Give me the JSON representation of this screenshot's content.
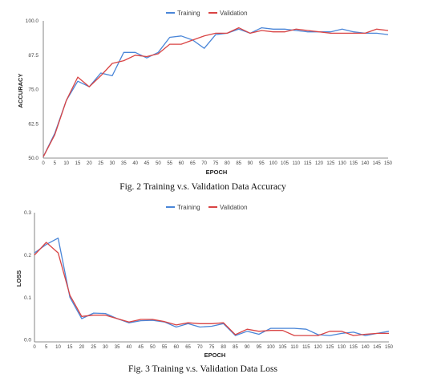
{
  "chart_data": [
    {
      "type": "line",
      "caption": "Fig. 2 Training v.s. Validation Data Accuracy",
      "xlabel": "EPOCH",
      "ylabel": "ACCURACY",
      "xlim": [
        0,
        150
      ],
      "ylim": [
        50,
        100
      ],
      "xticks": [
        "0",
        "5",
        "10",
        "15",
        "20",
        "25",
        "30",
        "35",
        "40",
        "45",
        "50",
        "55",
        "60",
        "65",
        "70",
        "75",
        "80",
        "85",
        "90",
        "95",
        "100",
        "105",
        "110",
        "115",
        "120",
        "125",
        "130",
        "135",
        "140",
        "145",
        "150"
      ],
      "yticks": [
        "50.0",
        "62.5",
        "75.0",
        "87.5",
        "100.0"
      ],
      "ytick_values": [
        50,
        62.5,
        75,
        87.5,
        100
      ],
      "legend": "top",
      "grid": false,
      "x": [
        0,
        5,
        10,
        15,
        20,
        25,
        30,
        35,
        40,
        45,
        50,
        55,
        60,
        65,
        70,
        75,
        80,
        85,
        90,
        95,
        100,
        105,
        110,
        115,
        120,
        125,
        130,
        135,
        140,
        145,
        150
      ],
      "series": [
        {
          "name": "Training",
          "color": "#4a86d8",
          "values": [
            50.5,
            59,
            71,
            78,
            76,
            81,
            80,
            88.5,
            88.5,
            86.5,
            88.5,
            94,
            94.5,
            93,
            90,
            95,
            95.5,
            97,
            95.5,
            97.5,
            97,
            97,
            96.5,
            96,
            96,
            96,
            97,
            96,
            95.5,
            95.5,
            95
          ]
        },
        {
          "name": "Validation",
          "color": "#d94444",
          "values": [
            50.5,
            58.5,
            71,
            79.5,
            76,
            80,
            84.5,
            85.5,
            87.5,
            87,
            88,
            91.5,
            91.5,
            93,
            94.5,
            95.5,
            95.5,
            97.5,
            95.5,
            96.5,
            96,
            96,
            97,
            96.5,
            96,
            95.5,
            95.5,
            95.5,
            95.5,
            97,
            96.5
          ]
        }
      ]
    },
    {
      "type": "line",
      "caption": "Fig. 3 Training v.s. Validation Data Loss",
      "xlabel": "EPOCH",
      "ylabel": "LOSS",
      "xlim": [
        0,
        150
      ],
      "ylim": [
        -0.005,
        0.3
      ],
      "xticks": [
        "0",
        "5",
        "10",
        "15",
        "20",
        "25",
        "30",
        "35",
        "40",
        "45",
        "50",
        "55",
        "60",
        "65",
        "70",
        "75",
        "80",
        "85",
        "90",
        "95",
        "100",
        "105",
        "110",
        "115",
        "120",
        "125",
        "130",
        "135",
        "140",
        "145",
        "150"
      ],
      "yticks": [
        "0.0",
        "0.1",
        "0.2",
        "0.3"
      ],
      "ytick_values": [
        0,
        0.1,
        0.2,
        0.3
      ],
      "legend": "top",
      "grid": false,
      "x": [
        0,
        5,
        10,
        15,
        20,
        25,
        30,
        35,
        40,
        45,
        50,
        55,
        60,
        65,
        70,
        75,
        80,
        85,
        90,
        95,
        100,
        105,
        110,
        115,
        120,
        125,
        130,
        135,
        140,
        145,
        150
      ],
      "series": [
        {
          "name": "Training",
          "color": "#4a86d8",
          "values": [
            0.205,
            0.225,
            0.24,
            0.1,
            0.05,
            0.063,
            0.062,
            0.05,
            0.04,
            0.045,
            0.046,
            0.042,
            0.03,
            0.038,
            0.03,
            0.032,
            0.038,
            0.01,
            0.02,
            0.013,
            0.027,
            0.027,
            0.027,
            0.025,
            0.012,
            0.01,
            0.015,
            0.018,
            0.01,
            0.015,
            0.02
          ]
        },
        {
          "name": "Validation",
          "color": "#d94444",
          "values": [
            0.2,
            0.23,
            0.205,
            0.105,
            0.055,
            0.058,
            0.058,
            0.05,
            0.042,
            0.048,
            0.048,
            0.043,
            0.035,
            0.04,
            0.038,
            0.038,
            0.04,
            0.012,
            0.025,
            0.02,
            0.022,
            0.022,
            0.01,
            0.01,
            0.01,
            0.02,
            0.02,
            0.01,
            0.013,
            0.015,
            0.015
          ]
        }
      ]
    }
  ]
}
